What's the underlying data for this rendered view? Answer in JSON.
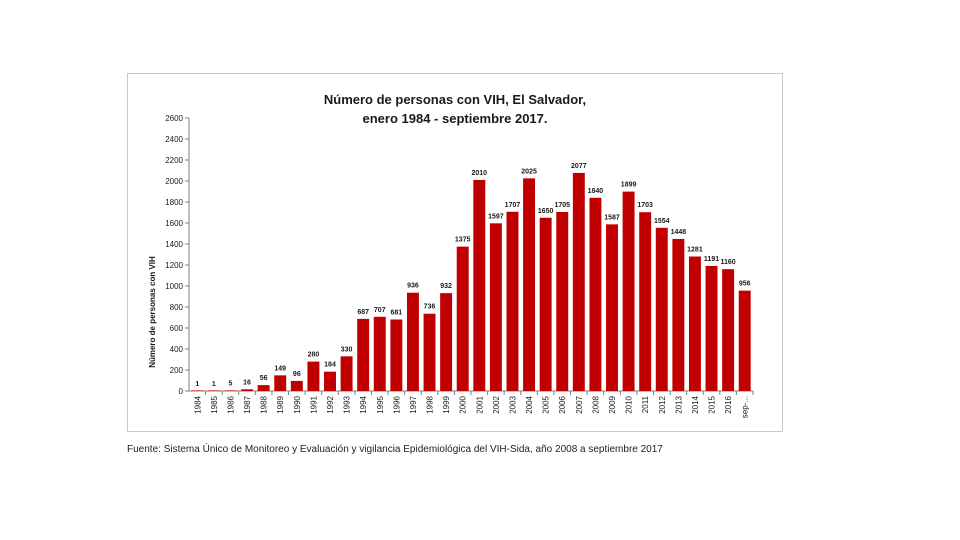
{
  "chart_data": {
    "type": "bar",
    "title_lines": [
      "Número de personas con VIH, El Salvador,",
      "enero 1984 - septiembre 2017."
    ],
    "xlabel": "",
    "ylabel": "Número de personas con VIH",
    "ylim": [
      0,
      2600
    ],
    "yticks": [
      0,
      200,
      400,
      600,
      800,
      1000,
      1200,
      1400,
      1600,
      1800,
      2000,
      2200,
      2400,
      2600
    ],
    "categories": [
      "1984",
      "1985",
      "1986",
      "1987",
      "1988",
      "1989",
      "1990",
      "1991",
      "1992",
      "1993",
      "1994",
      "1995",
      "1996",
      "1997",
      "1998",
      "1999",
      "2000",
      "2001",
      "2002",
      "2003",
      "2004",
      "2005",
      "2006",
      "2007",
      "2008",
      "2009",
      "2010",
      "2011",
      "2012",
      "2013",
      "2014",
      "2015",
      "2016",
      "sep-..."
    ],
    "values": [
      1,
      1,
      5,
      16,
      56,
      149,
      96,
      280,
      184,
      330,
      687,
      707,
      681,
      936,
      736,
      932,
      1375,
      2010,
      1597,
      1707,
      2025,
      1650,
      1705,
      2077,
      1840,
      1587,
      1899,
      1703,
      1554,
      1448,
      1281,
      1191,
      1160,
      956
    ],
    "bar_color": "#c00000",
    "grid": false,
    "legend": "none"
  },
  "source_note": "Fuente: Sistema Único de Monitoreo y Evaluación y vigilancia Epidemiológica del VIH-Sida, año 2008 a septiembre 2017"
}
